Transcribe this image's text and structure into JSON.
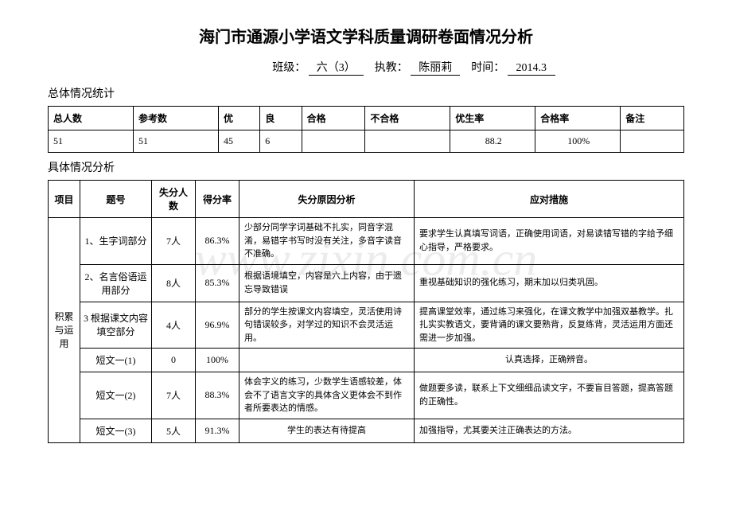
{
  "title": "海门市通源小学语文学科质量调研卷面情况分析",
  "meta": {
    "class_label": "班级：",
    "class_value": "六（3）",
    "teacher_label": "执教：",
    "teacher_value": "陈丽莉",
    "time_label": "时间：",
    "time_value": "2014.3"
  },
  "section1_title": "总体情况统计",
  "summary_headers": {
    "total": "总人数",
    "ref": "参考数",
    "excellent": "优",
    "good": "良",
    "pass": "合格",
    "fail": "不合格",
    "exc_rate": "优生率",
    "pass_rate": "合格率",
    "note": "备注"
  },
  "summary_data": {
    "total": "51",
    "ref": "51",
    "excellent": "45",
    "good": "6",
    "pass": "",
    "fail": "",
    "exc_rate": "88.2",
    "pass_rate": "100%",
    "note": ""
  },
  "section2_title": "具体情况分析",
  "detail_headers": {
    "item": "项目",
    "num": "题号",
    "lose": "失分人数",
    "rate": "得分率",
    "reason": "失分原因分析",
    "action": "应对措施"
  },
  "category": "积累与运用",
  "rows": [
    {
      "num": "1、生字词部分",
      "lose": "7人",
      "rate": "86.3%",
      "reason": "少部分同学字词基础不扎实，同音字混淆，易错字书写时没有关注，多音字读音不准确。",
      "action": "要求学生认真填写词语，正确使用词语，对易读错写错的字给予细心指导，严格要求。"
    },
    {
      "num": "2、名言俗语运用部分",
      "lose": "8人",
      "rate": "85.3%",
      "reason": "根据语境填空，内容是六上内容，由于遗忘导致错误",
      "action": "重视基础知识的强化练习，期末加以归类巩固。"
    },
    {
      "num": "3 根据课文内容填空部分",
      "lose": "4人",
      "rate": "96.9%",
      "reason": "部分的学生按课文内容填空，灵活使用诗句错误较多，对学过的知识不会灵活运用。",
      "action": "提高课堂效率，通过练习来强化，在课文教学中加强双基教学。扎扎实实教语文，要背诵的课文要熟背，反复练背，灵活运用方面还需进一步加强。"
    },
    {
      "num": "短文一(1)",
      "lose": "0",
      "rate": "100%",
      "reason": "",
      "action": "认真选择，正确辨音。"
    },
    {
      "num": "短文一(2)",
      "lose": "7人",
      "rate": "88.3%",
      "reason": "体会字义的练习，少数学生语感较差，体会不了语言文字的具体含义更体会不到作者所要表达的情感。",
      "action": "做题要多读，联系上下文细细品读文字，不要盲目答题，提高答题的正确性。"
    },
    {
      "num": "短文一(3)",
      "lose": "5人",
      "rate": "91.3%",
      "reason": "学生的表达有待提高",
      "action": "加强指导，尤其要关注正确表达的方法。"
    }
  ]
}
